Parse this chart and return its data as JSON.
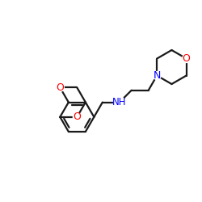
{
  "bg_color": "#ffffff",
  "bond_color": "#1a1a1a",
  "N_color": "#0000ff",
  "O_color": "#ff0000",
  "bond_width": 1.6,
  "figsize": [
    2.5,
    2.5
  ],
  "dpi": 100,
  "xlim": [
    0,
    10
  ],
  "ylim": [
    0,
    10
  ]
}
